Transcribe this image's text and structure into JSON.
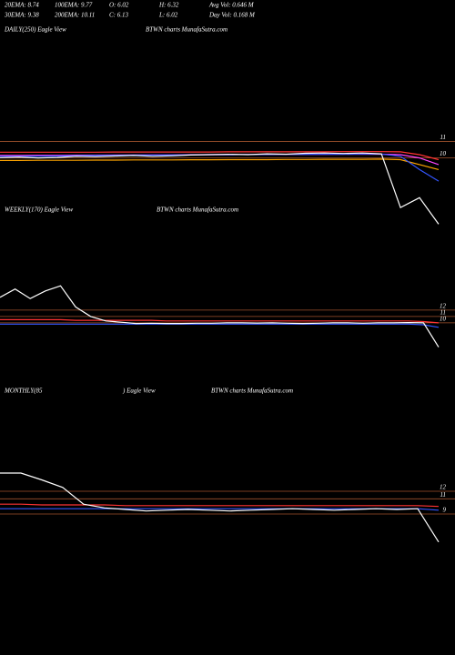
{
  "header": {
    "row1": [
      "20EMA: 8.74",
      "100EMA: 9.77",
      "O: 6.02",
      "H: 6.32",
      "Avg Vol: 0.646  M"
    ],
    "row2": [
      "30EMA: 9.38",
      "200EMA: 10.11",
      "C: 6.13",
      "L: 6.02",
      "Day Vol: 0.168 M"
    ]
  },
  "chart_data": [
    {
      "type": "line",
      "title": "DAILY(250) Eagle  View",
      "subtitle": "BTWN  charts MunafaSutra.com",
      "ylim": [
        5.8,
        11.3
      ],
      "yticks": [
        11,
        10
      ],
      "grid": true,
      "grid_color": "#a0522d",
      "series": [
        {
          "color": "#ff44ff",
          "values": [
            10.15,
            10.15,
            10.16,
            10.16,
            10.17,
            10.17,
            10.18,
            10.18,
            10.19,
            10.19,
            10.2,
            10.2,
            10.2,
            10.21,
            10.21,
            10.22,
            10.22,
            10.22,
            10.23,
            10.23,
            10.23,
            10.2,
            10.0,
            9.6
          ]
        },
        {
          "color": "#ff3333",
          "values": [
            10.35,
            10.35,
            10.35,
            10.35,
            10.35,
            10.35,
            10.36,
            10.36,
            10.36,
            10.36,
            10.36,
            10.36,
            10.37,
            10.37,
            10.37,
            10.37,
            10.37,
            10.37,
            10.38,
            10.38,
            10.38,
            10.37,
            10.2,
            9.9
          ]
        },
        {
          "color": "#ffa500",
          "values": [
            9.85,
            9.85,
            9.86,
            9.86,
            9.86,
            9.87,
            9.87,
            9.88,
            9.88,
            9.88,
            9.89,
            9.89,
            9.9,
            9.9,
            9.9,
            9.91,
            9.91,
            9.92,
            9.92,
            9.92,
            9.93,
            9.9,
            9.6,
            9.3
          ]
        },
        {
          "color": "#3355ff",
          "values": [
            10.1,
            10.1,
            10.11,
            10.12,
            10.14,
            10.15,
            10.16,
            10.17,
            10.17,
            10.18,
            10.19,
            10.2,
            10.2,
            10.21,
            10.21,
            10.22,
            10.22,
            10.23,
            10.23,
            10.24,
            10.24,
            10.1,
            9.3,
            8.6
          ]
        },
        {
          "color": "#ffffff",
          "values": [
            10.02,
            10.05,
            10.0,
            10.03,
            10.1,
            10.08,
            10.12,
            10.15,
            10.1,
            10.13,
            10.18,
            10.2,
            10.22,
            10.2,
            10.25,
            10.23,
            10.28,
            10.3,
            10.27,
            10.3,
            10.25,
            7.0,
            7.6,
            6.0
          ]
        }
      ]
    },
    {
      "type": "line",
      "title": "WEEKLY(170) Eagle  View",
      "subtitle": "BTWN  charts MunafaSutra.com",
      "ylim": [
        5.0,
        16.4
      ],
      "yticks": [
        12,
        11,
        10
      ],
      "grid": true,
      "grid_color": "#a0522d",
      "series": [
        {
          "color": "#ff3333",
          "values": [
            10.5,
            10.5,
            10.5,
            10.5,
            10.5,
            10.4,
            10.4,
            10.4,
            10.4,
            10.4,
            10.4,
            10.3,
            10.3,
            10.3,
            10.3,
            10.3,
            10.3,
            10.3,
            10.3,
            10.3,
            10.3,
            10.3,
            10.3,
            10.3,
            10.3,
            10.3,
            10.3,
            10.3,
            10.2,
            10.0
          ]
        },
        {
          "color": "#3355ff",
          "values": [
            9.8,
            9.8,
            9.8,
            9.8,
            9.8,
            9.8,
            9.8,
            9.8,
            9.8,
            9.8,
            9.8,
            9.8,
            9.8,
            9.8,
            9.8,
            9.8,
            9.8,
            9.8,
            9.8,
            9.8,
            9.8,
            9.8,
            9.8,
            9.8,
            9.8,
            9.8,
            9.8,
            9.8,
            9.7,
            9.3
          ]
        },
        {
          "color": "#ffffff",
          "values": [
            14.0,
            15.3,
            13.8,
            15.0,
            15.8,
            12.5,
            11.0,
            10.3,
            10.1,
            9.9,
            9.95,
            9.9,
            9.9,
            9.95,
            9.95,
            10.0,
            10.0,
            9.98,
            10.0,
            9.95,
            9.9,
            9.95,
            10.0,
            10.0,
            9.95,
            10.0,
            10.0,
            10.05,
            10.0,
            6.2
          ]
        }
      ]
    },
    {
      "type": "line",
      "title": "MONTHLY(85",
      "title2": ") Eagle  View",
      "subtitle": "BTWN  charts MunafaSutra.com",
      "ylim": [
        4.8,
        15.0
      ],
      "yticks": [
        12,
        11,
        9
      ],
      "grid": true,
      "grid_color": "#a0522d",
      "series": [
        {
          "color": "#ff3333",
          "values": [
            10.3,
            10.3,
            10.2,
            10.2,
            10.2,
            10.2,
            10.1,
            10.1,
            10.1,
            10.1,
            10.1,
            10.1,
            10.1,
            10.1,
            10.1,
            10.1,
            10.1,
            10.1,
            10.1,
            10.1,
            10.1,
            10.0
          ]
        },
        {
          "color": "#3355ff",
          "values": [
            9.7,
            9.7,
            9.7,
            9.7,
            9.7,
            9.7,
            9.7,
            9.7,
            9.7,
            9.7,
            9.7,
            9.7,
            9.7,
            9.7,
            9.7,
            9.7,
            9.7,
            9.7,
            9.7,
            9.7,
            9.7,
            9.5
          ]
        },
        {
          "color": "#ffffff",
          "values": [
            14.4,
            14.4,
            13.5,
            12.5,
            10.3,
            9.8,
            9.6,
            9.4,
            9.5,
            9.6,
            9.5,
            9.4,
            9.5,
            9.6,
            9.7,
            9.6,
            9.5,
            9.6,
            9.7,
            9.6,
            9.7,
            5.3
          ]
        }
      ]
    }
  ]
}
